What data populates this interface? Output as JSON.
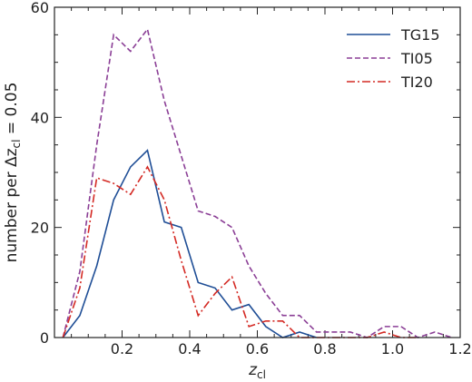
{
  "chart_data": {
    "type": "line",
    "xlabel_main": "z",
    "xlabel_sub": "cl",
    "ylabel_main": "number per Δz",
    "ylabel_sub": "cl",
    "ylabel_tail": " = 0.05",
    "xlim": [
      0.0,
      1.2
    ],
    "ylim": [
      0,
      60
    ],
    "xticks": [
      {
        "value": 0.2,
        "label": "0.2"
      },
      {
        "value": 0.4,
        "label": "0.4"
      },
      {
        "value": 0.6,
        "label": "0.6"
      },
      {
        "value": 0.8,
        "label": "0.8"
      },
      {
        "value": 1.0,
        "label": "1.0"
      },
      {
        "value": 1.2,
        "label": "1.2"
      }
    ],
    "yticks": [
      {
        "value": 0,
        "label": "0"
      },
      {
        "value": 20,
        "label": "20"
      },
      {
        "value": 40,
        "label": "40"
      },
      {
        "value": 60,
        "label": "60"
      }
    ],
    "legend_position": "top-right",
    "series": [
      {
        "name": "TG15",
        "color": "#1f4e96",
        "style": "solid",
        "x": [
          0.025,
          0.075,
          0.125,
          0.175,
          0.225,
          0.275,
          0.325,
          0.375,
          0.425,
          0.475,
          0.525,
          0.575,
          0.625,
          0.675,
          0.725,
          0.775
        ],
        "y": [
          0,
          4,
          13,
          25,
          31,
          34,
          21,
          20,
          10,
          9,
          5,
          6,
          2,
          0,
          1,
          0
        ]
      },
      {
        "name": "TI05",
        "color": "#8b3f96",
        "style": "dashed",
        "x": [
          0.025,
          0.075,
          0.125,
          0.175,
          0.225,
          0.275,
          0.325,
          0.375,
          0.425,
          0.475,
          0.525,
          0.575,
          0.625,
          0.675,
          0.725,
          0.775,
          0.825,
          0.875,
          0.925,
          0.975,
          1.025,
          1.075,
          1.125,
          1.175
        ],
        "y": [
          0,
          12,
          35,
          55,
          52,
          56,
          43,
          33,
          23,
          22,
          20,
          13,
          8,
          4,
          4,
          1,
          1,
          1,
          0,
          2,
          2,
          0,
          1,
          0
        ]
      },
      {
        "name": "TI20",
        "color": "#d42a24",
        "style": "dashdot",
        "x": [
          0.025,
          0.075,
          0.125,
          0.175,
          0.225,
          0.275,
          0.325,
          0.375,
          0.425,
          0.475,
          0.525,
          0.575,
          0.625,
          0.675,
          0.725,
          0.775,
          0.825,
          0.875,
          0.925,
          0.975,
          1.025,
          1.075
        ],
        "y": [
          0,
          9,
          29,
          28,
          26,
          31,
          25,
          14,
          4,
          8,
          11,
          2,
          3,
          3,
          0,
          0,
          0,
          0,
          0,
          1,
          0,
          0
        ]
      }
    ]
  }
}
